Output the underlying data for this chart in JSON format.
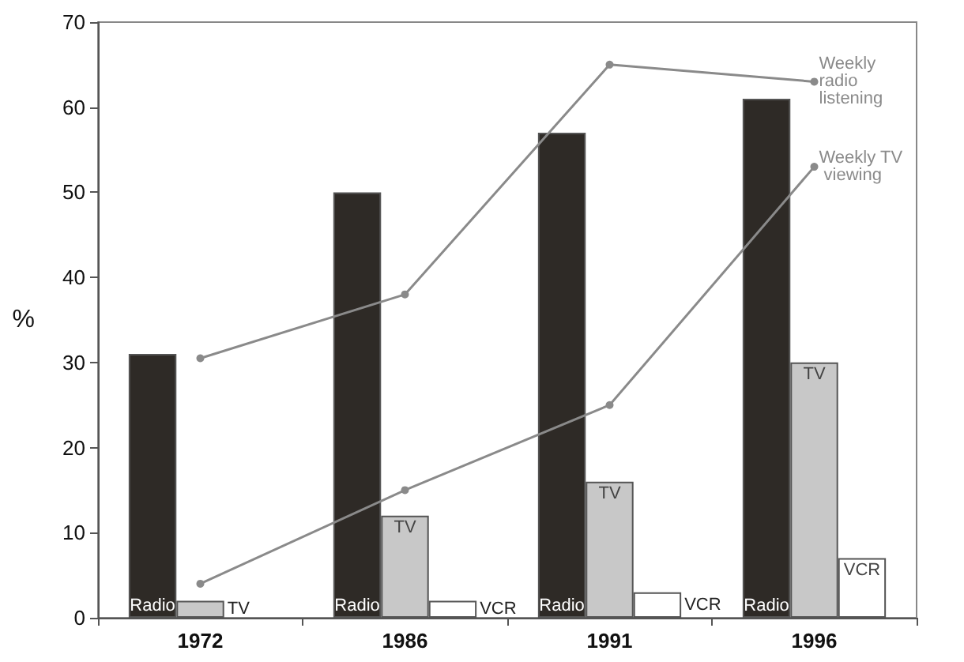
{
  "chart_data": {
    "type": "bar",
    "categories": [
      "1972",
      "1986",
      "1991",
      "1996"
    ],
    "ylabel": "%",
    "ylim": [
      0,
      70
    ],
    "yticks": [
      0,
      10,
      20,
      30,
      40,
      50,
      60,
      70
    ],
    "grid": false,
    "legend": false,
    "marker": "circle",
    "series": [
      {
        "name": "Radio",
        "color": "#2e2a26",
        "values": [
          31,
          50,
          57,
          61
        ]
      },
      {
        "name": "TV",
        "color": "#c8c8c8",
        "values": [
          2,
          12,
          16,
          30
        ]
      },
      {
        "name": "VCR",
        "color": "#ffffff",
        "values": [
          null,
          2,
          3,
          7
        ]
      },
      {
        "name": "Weekly radio listening",
        "type": "line",
        "color": "#8a8a8a",
        "values": [
          30.5,
          38,
          65,
          63
        ]
      },
      {
        "name": "Weekly TV viewing",
        "type": "line",
        "color": "#8a8a8a",
        "values": [
          4,
          15,
          25,
          53
        ]
      }
    ]
  }
}
